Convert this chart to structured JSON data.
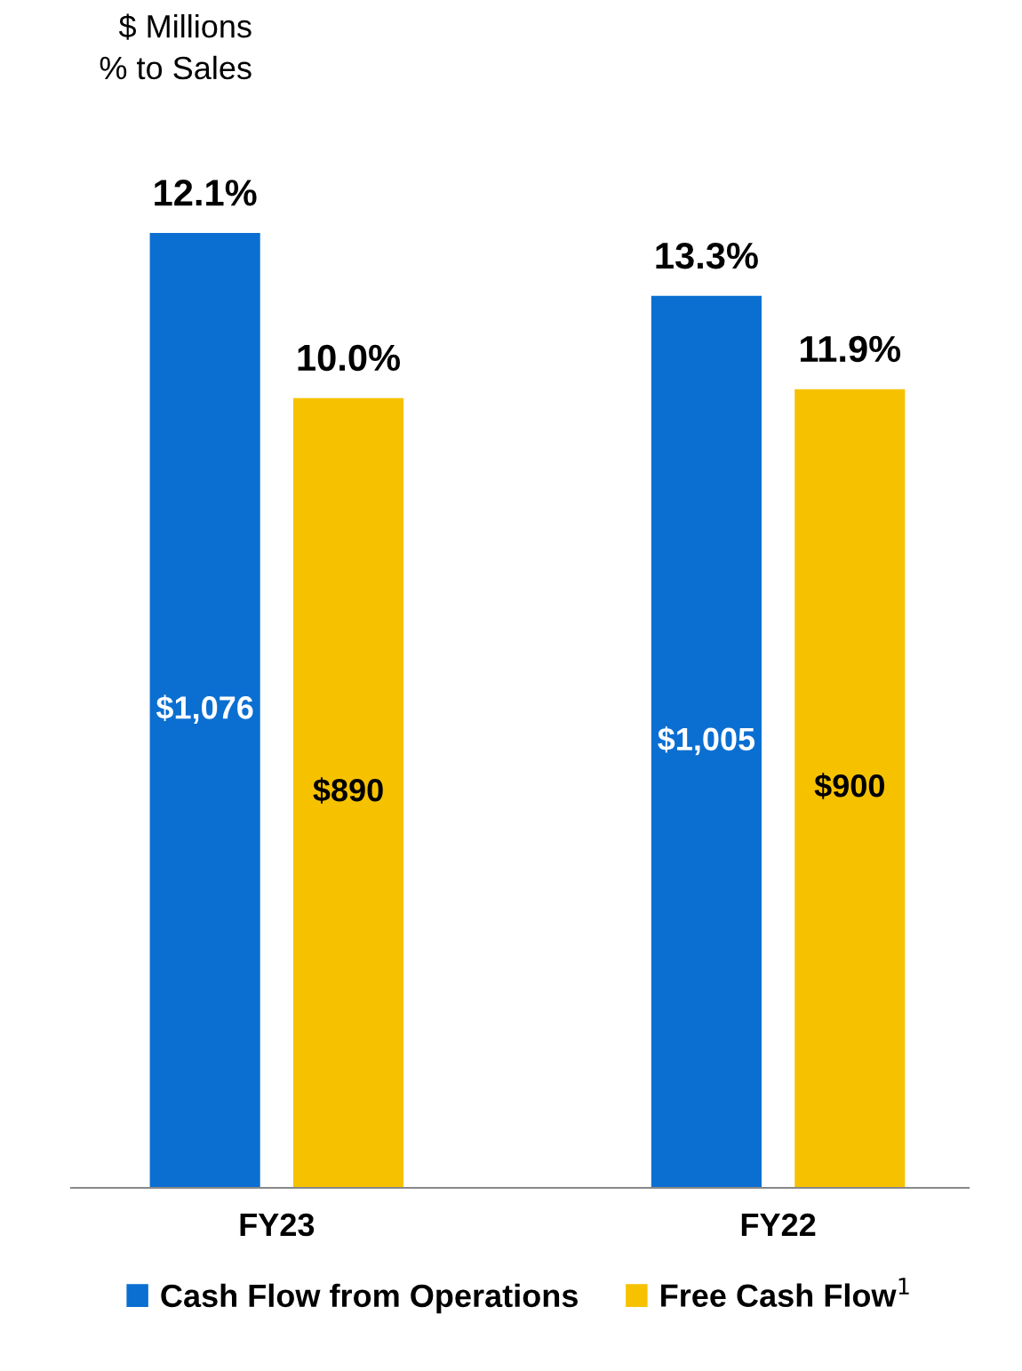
{
  "chart_data": {
    "type": "bar",
    "title": "$ Millions\n% to Sales",
    "categories": [
      "FY23",
      "FY22"
    ],
    "series": [
      {
        "name": "Cash Flow from Operations",
        "color": "#0b6fd1",
        "values": [
          1076,
          1005
        ],
        "value_labels": [
          "$1,076",
          "$1,005"
        ]
      },
      {
        "name": "Free Cash Flow$^{1}$",
        "color": "#f6c200",
        "values": [
          890,
          900
        ],
        "value_labels": [
          "$890",
          "$900"
        ]
      }
    ],
    "annotations": [
      "12.1%",
      "10.0%",
      "13.3%",
      "11.9%"
    ],
    "legend": "bottom",
    "grid": false
  }
}
